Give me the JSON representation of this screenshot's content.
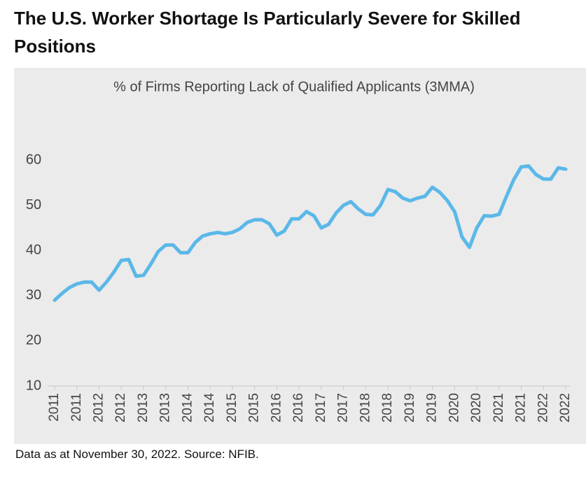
{
  "chart_data": {
    "type": "line",
    "title": "The U.S. Worker Shortage Is Particularly Severe for Skilled Positions",
    "subtitle": "% of Firms Reporting Lack of Qualified Applicants (3MMA)",
    "footnote": "Data as at November 30, 2022. Source: NFIB.",
    "categories": [
      "2011",
      null,
      null,
      "2011",
      null,
      null,
      "2012",
      null,
      null,
      "2012",
      null,
      null,
      "2013",
      null,
      null,
      "2013",
      null,
      null,
      "2014",
      null,
      null,
      "2014",
      null,
      null,
      "2015",
      null,
      null,
      "2015",
      null,
      null,
      "2016",
      null,
      null,
      "2016",
      null,
      null,
      "2017",
      null,
      null,
      "2017",
      null,
      null,
      "2018",
      null,
      null,
      "2018",
      null,
      null,
      "2019",
      null,
      null,
      "2019",
      null,
      null,
      "2020",
      null,
      null,
      "2020",
      null,
      null,
      "2021",
      null,
      null,
      "2021",
      null,
      null,
      "2022",
      null,
      null,
      "2022"
    ],
    "series": [
      {
        "name": "% of Firms Reporting Lack of Qualified Applicants",
        "color": "#5bb8e8",
        "values": [
          29,
          30.5,
          31.8,
          32.6,
          33,
          33,
          31.2,
          33,
          35.2,
          37.8,
          38,
          34.3,
          34.5,
          37,
          39.8,
          41.2,
          41.2,
          39.5,
          39.5,
          41.8,
          43.2,
          43.7,
          44,
          43.7,
          44,
          44.8,
          46.2,
          46.8,
          46.8,
          45.9,
          43.4,
          44.3,
          47,
          47,
          48.6,
          47.7,
          45,
          45.8,
          48.3,
          50,
          50.8,
          49.2,
          48,
          47.9,
          50,
          53.5,
          53,
          51.6,
          51,
          51.6,
          52,
          54,
          52.9,
          51.1,
          48.6,
          43,
          40.7,
          45,
          47.7,
          47.6,
          48,
          52,
          55.7,
          58.5,
          58.7,
          56.8,
          55.8,
          55.8,
          58.3,
          58
        ]
      }
    ],
    "ylim": [
      10,
      60
    ],
    "yticks": [
      10,
      20,
      30,
      40,
      50,
      60
    ],
    "grid": false,
    "legend": false
  }
}
